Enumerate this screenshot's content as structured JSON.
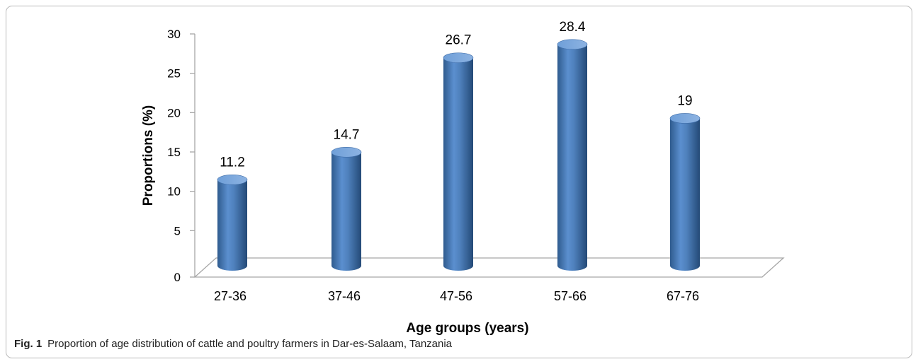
{
  "caption": {
    "label": "Fig. 1",
    "text": "Proportion of age distribution of cattle and poultry farmers in Dar-es-Salaam, Tanzania"
  },
  "chart_data": {
    "type": "bar",
    "categories": [
      "27-36",
      "37-46",
      "47-56",
      "57-66",
      "67-76"
    ],
    "values": [
      11.2,
      14.7,
      26.7,
      28.4,
      19
    ],
    "data_labels": [
      "11.2",
      "14.7",
      "26.7",
      "28.4",
      "19"
    ],
    "xlabel": "Age groups (years)",
    "ylabel": "Proportions (%)",
    "ylim": [
      0,
      30
    ],
    "yticks": [
      0,
      5,
      10,
      15,
      20,
      25,
      30
    ],
    "grid": false,
    "legend": "none",
    "style": "3d-cylinder",
    "colors": {
      "bar": "#4f81bd",
      "bar_dark": "#2f5b8e",
      "bar_light": "#8db3e2",
      "axis": "#a6a6a6",
      "text": "#000000"
    }
  }
}
